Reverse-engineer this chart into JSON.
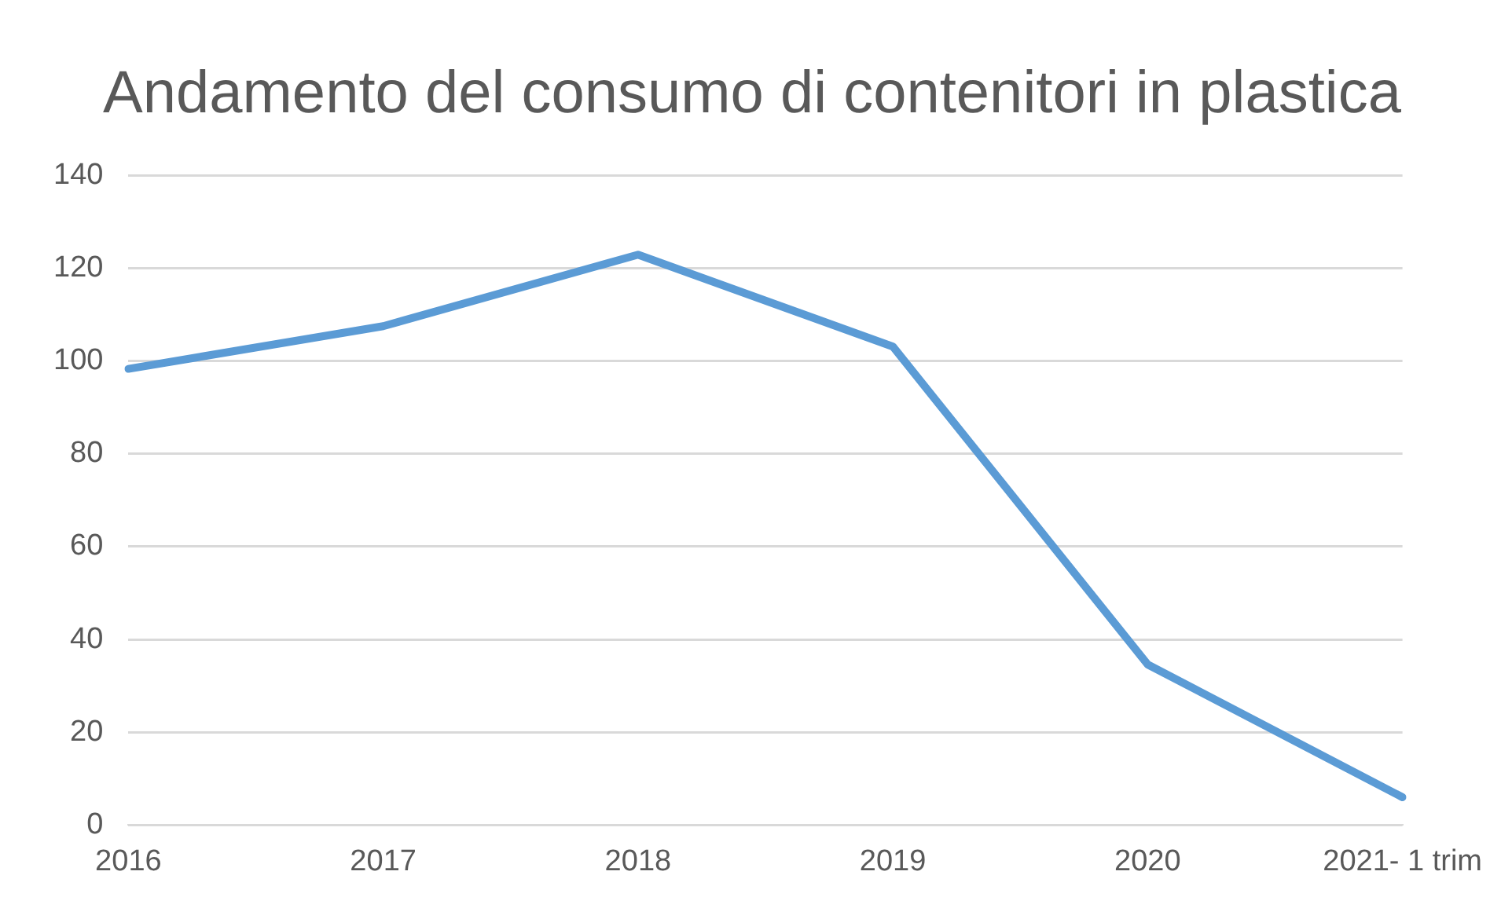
{
  "chart_data": {
    "type": "line",
    "title": "Andamento del consumo di contenitori in plastica",
    "categories": [
      "2016",
      "2017",
      "2018",
      "2019",
      "2020",
      "2021- 1 trim"
    ],
    "series": [
      {
        "color": "#5b9bd5",
        "values": [
          98.3,
          107.5,
          122.9,
          103.1,
          34.6,
          6
        ]
      }
    ],
    "ylim": [
      0,
      140
    ],
    "yticks": [
      0,
      20,
      40,
      60,
      80,
      100,
      120,
      140
    ],
    "grid": "y",
    "legend": false,
    "marker": "none",
    "line_style": "solid"
  }
}
